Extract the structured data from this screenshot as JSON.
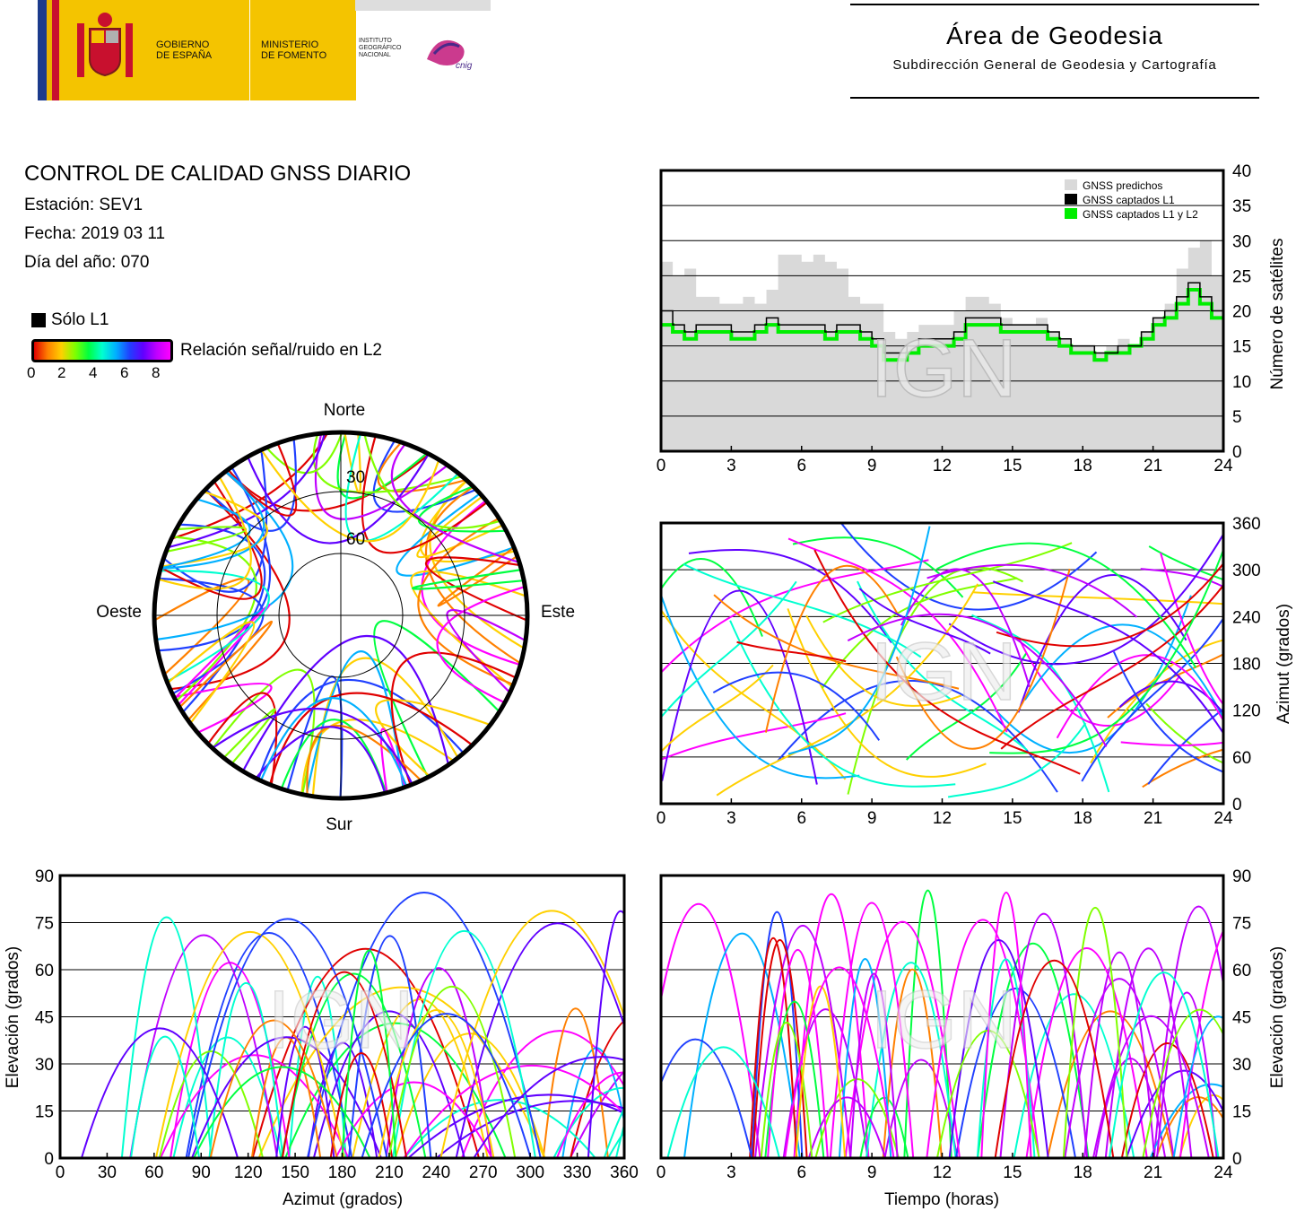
{
  "header": {
    "gov_line1": "GOBIERNO",
    "gov_line2": "DE ESPAÑA",
    "ministry_line1": "MINISTERIO",
    "ministry_line2": "DE FOMENTO",
    "ign_line1": "INSTITUTO",
    "ign_line2": "GEOGRÁFICO",
    "ign_line3": "NACIONAL",
    "cnig": "cnig",
    "area_title": "Área de Geodesia",
    "area_subtitle": "Subdirección General de Geodesia y Cartografía"
  },
  "report": {
    "title": "CONTROL DE CALIDAD GNSS DIARIO",
    "station": "Estación: SEV1",
    "date": "Fecha: 2019 03 11",
    "doy": "Día del año: 070"
  },
  "legend": {
    "l1_only": "Sólo L1",
    "snr_label": "Relación señal/ruido en L2",
    "snr_ticks": [
      "0",
      "2",
      "4",
      "6",
      "8"
    ]
  },
  "watermark": "IGN",
  "colors": {
    "predicted": "#d9d9d9",
    "captured_l1": "#000000",
    "captured_l1_l2": "#00ee00",
    "snr_scale": [
      "#e00000",
      "#ff8000",
      "#ffd000",
      "#80ff00",
      "#00ff40",
      "#00ffd0",
      "#00b0ff",
      "#2040ff",
      "#6000ff",
      "#c000ff",
      "#ff00ff"
    ]
  },
  "chart_data": [
    {
      "type": "area",
      "id": "satellites",
      "xlabel": "",
      "ylabel": "Número de satélites",
      "xlim": [
        0,
        24
      ],
      "ylim": [
        0,
        40
      ],
      "xticks": [
        "0",
        "3",
        "6",
        "9",
        "12",
        "15",
        "18",
        "21",
        "24"
      ],
      "yticks": [
        "0",
        "5",
        "10",
        "15",
        "20",
        "25",
        "30",
        "35",
        "40"
      ],
      "grid": "horizontal",
      "legend_position": "top-right",
      "x": [
        0,
        0.5,
        1,
        1.5,
        2,
        2.5,
        3,
        3.5,
        4,
        4.5,
        5,
        5.5,
        6,
        6.5,
        7,
        7.5,
        8,
        8.5,
        9,
        9.5,
        10,
        10.5,
        11,
        11.5,
        12,
        12.5,
        13,
        13.5,
        14,
        14.5,
        15,
        15.5,
        16,
        16.5,
        17,
        17.5,
        18,
        18.5,
        19,
        19.5,
        20,
        20.5,
        21,
        21.5,
        22,
        22.5,
        23,
        23.5,
        24
      ],
      "series": [
        {
          "name": "GNSS predichos",
          "values": [
            27,
            25,
            26,
            22,
            22,
            21,
            21,
            22,
            21,
            23,
            28,
            28,
            27,
            28,
            27,
            26,
            22,
            21,
            21,
            17,
            16,
            17,
            18,
            18,
            18,
            20,
            22,
            22,
            21,
            19,
            18,
            18,
            19,
            17,
            16,
            15,
            15,
            14,
            15,
            16,
            15,
            17,
            19,
            21,
            26,
            29,
            30,
            25,
            21
          ]
        },
        {
          "name": "GNSS captados L1",
          "values": [
            20,
            18,
            17,
            18,
            18,
            18,
            17,
            17,
            18,
            19,
            18,
            18,
            18,
            18,
            17,
            18,
            18,
            17,
            16,
            14,
            14,
            15,
            16,
            16,
            16,
            17,
            19,
            19,
            19,
            18,
            18,
            18,
            18,
            17,
            16,
            15,
            15,
            14,
            14,
            15,
            15,
            17,
            19,
            20,
            22,
            24,
            22,
            20,
            20
          ]
        },
        {
          "name": "GNSS captados L1 y L2",
          "values": [
            18,
            17,
            16,
            17,
            17,
            17,
            16,
            16,
            17,
            18,
            17,
            17,
            17,
            17,
            16,
            17,
            17,
            16,
            15,
            13,
            13,
            14,
            15,
            15,
            15,
            16,
            18,
            18,
            18,
            17,
            17,
            17,
            17,
            16,
            15,
            14,
            14,
            13,
            14,
            14,
            15,
            16,
            18,
            19,
            21,
            23,
            21,
            19,
            19
          ]
        }
      ]
    },
    {
      "type": "scatter",
      "id": "skyplot",
      "title": "",
      "compass": {
        "north": "Norte",
        "south": "Sur",
        "east": "Este",
        "west": "Oeste"
      },
      "elevation_rings": [
        "30",
        "60"
      ]
    },
    {
      "type": "scatter",
      "id": "azimuth_time",
      "xlabel": "",
      "ylabel": "Azimut (grados)",
      "xlim": [
        0,
        24
      ],
      "ylim": [
        0,
        360
      ],
      "xticks": [
        "0",
        "3",
        "6",
        "9",
        "12",
        "15",
        "18",
        "21",
        "24"
      ],
      "yticks": [
        "0",
        "60",
        "120",
        "180",
        "240",
        "300",
        "360"
      ],
      "grid": "horizontal"
    },
    {
      "type": "scatter",
      "id": "elevation_azimuth",
      "xlabel": "Azimut (grados)",
      "ylabel": "Elevación (grados)",
      "xlim": [
        0,
        360
      ],
      "ylim": [
        0,
        90
      ],
      "xticks": [
        "0",
        "30",
        "60",
        "90",
        "120",
        "150",
        "180",
        "210",
        "240",
        "270",
        "300",
        "330",
        "360"
      ],
      "yticks": [
        "0",
        "15",
        "30",
        "45",
        "60",
        "75",
        "90"
      ],
      "grid": "horizontal"
    },
    {
      "type": "scatter",
      "id": "elevation_time",
      "xlabel": "Tiempo (horas)",
      "ylabel": "Elevación (grados)",
      "xlim": [
        0,
        24
      ],
      "ylim": [
        0,
        90
      ],
      "xticks": [
        "0",
        "3",
        "6",
        "9",
        "12",
        "15",
        "18",
        "21",
        "24"
      ],
      "yticks": [
        "0",
        "15",
        "30",
        "45",
        "60",
        "75",
        "90"
      ],
      "grid": "horizontal"
    }
  ]
}
